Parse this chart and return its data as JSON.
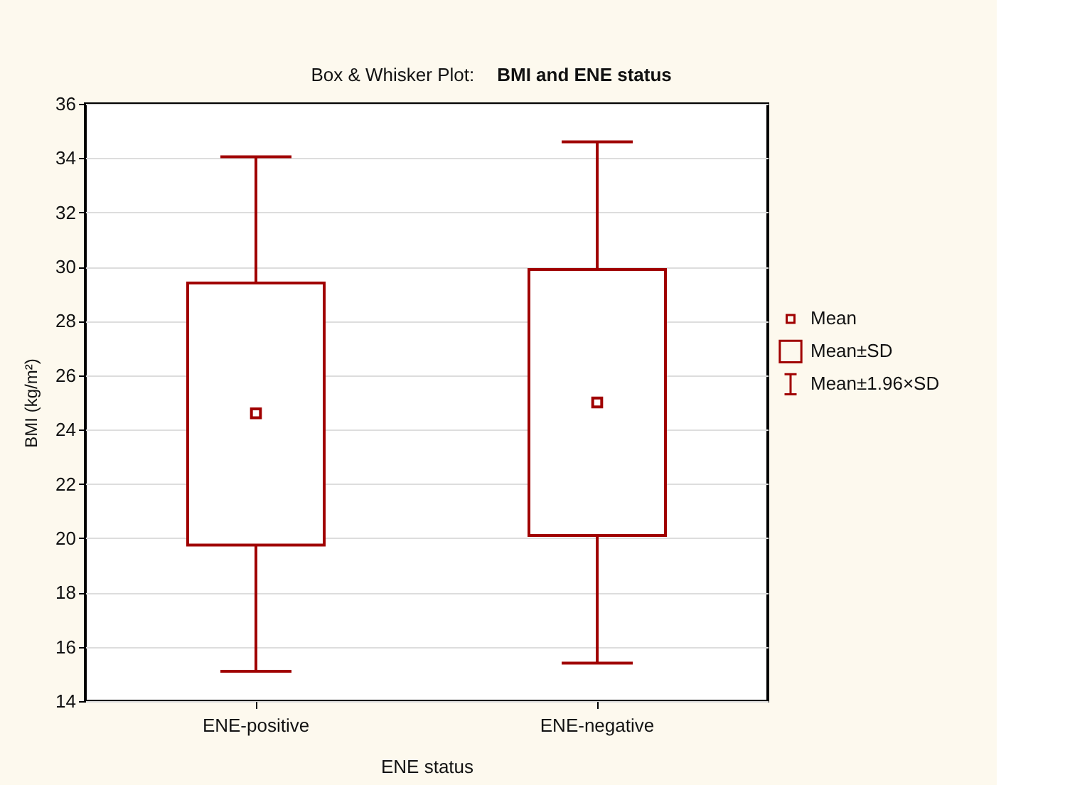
{
  "chart_data": {
    "type": "box",
    "title": "Box & Whisker Plot:",
    "subtitle": "BMI and ENE status",
    "xlabel": "ENE status",
    "ylabel": "BMI (kg/m²)",
    "categories": [
      "ENE-positive",
      "ENE-negative"
    ],
    "series": [
      {
        "color": "#a00000",
        "boxes": [
          {
            "low": 15.1,
            "q1": 19.75,
            "q3": 29.4,
            "high": 34.05,
            "mean": 24.6
          },
          {
            "low": 15.4,
            "q1": 20.1,
            "q3": 29.9,
            "high": 34.6,
            "mean": 25.0
          }
        ]
      }
    ],
    "annotations": [
      "Mean",
      "Mean±SD",
      "Mean±1.96×SD"
    ],
    "ylim": [
      14,
      36
    ],
    "yticks": [
      14,
      16,
      18,
      20,
      22,
      24,
      26,
      28,
      30,
      32,
      34,
      36
    ],
    "grid": "y"
  }
}
